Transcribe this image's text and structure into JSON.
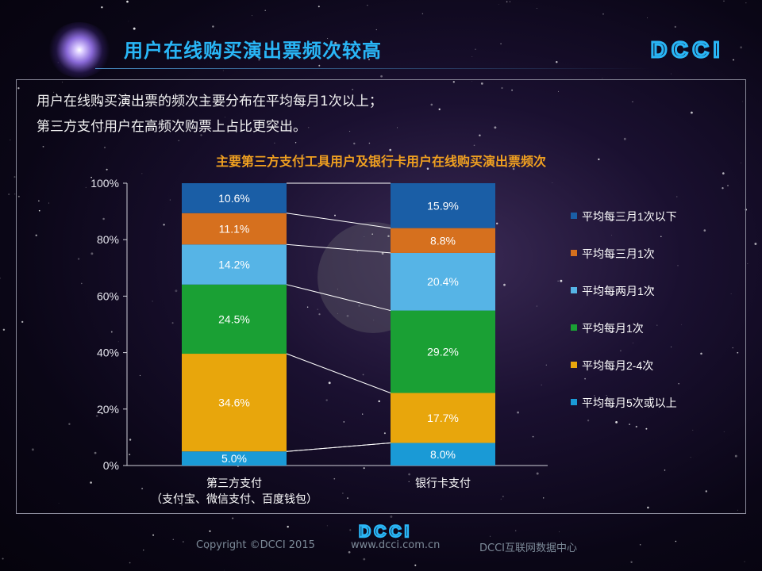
{
  "header": {
    "title": "用户在线购买演出票频次较高",
    "logo_text": "DCCI"
  },
  "intro": {
    "line1": "用户在线购买演出票的频次主要分布在平均每月1次以上；",
    "line2": "第三方支付用户在高频次购票上占比更突出。"
  },
  "chart_data": {
    "type": "bar",
    "stacked": true,
    "title": "主要第三方支付工具用户及银行卡用户在线购买演出票频次",
    "categories": [
      "第三方支付\n（支付宝、微信支付、百度钱包）",
      "银行卡支付"
    ],
    "category_lines": [
      [
        "第三方支付",
        "（支付宝、微信支付、百度钱包）"
      ],
      [
        "银行卡支付"
      ]
    ],
    "yticks": [
      "0%",
      "20%",
      "40%",
      "60%",
      "80%",
      "100%"
    ],
    "ylim": [
      0,
      100
    ],
    "legend_position": "right",
    "series": [
      {
        "name": "平均每月5次或以上",
        "color": "#1a9ad6",
        "values": [
          5.0,
          8.0
        ],
        "labels": [
          "5.0%",
          "8.0%"
        ]
      },
      {
        "name": "平均每月2-4次",
        "color": "#e8a60c",
        "values": [
          34.6,
          17.7
        ],
        "labels": [
          "34.6%",
          "17.7%"
        ]
      },
      {
        "name": "平均每月1次",
        "color": "#1aa034",
        "values": [
          24.5,
          29.2
        ],
        "labels": [
          "24.5%",
          "29.2%"
        ]
      },
      {
        "name": "平均每两月1次",
        "color": "#56b4e6",
        "values": [
          14.2,
          20.4
        ],
        "labels": [
          "14.2%",
          "20.4%"
        ]
      },
      {
        "name": "平均每三月1次",
        "color": "#d6701e",
        "values": [
          11.1,
          8.8
        ],
        "labels": [
          "11.1%",
          "8.8%"
        ]
      },
      {
        "name": "平均每三月1次以下",
        "color": "#1a5ea6",
        "values": [
          10.6,
          15.9
        ],
        "labels": [
          "10.6%",
          "15.9%"
        ]
      }
    ]
  },
  "footer": {
    "logo_text": "DCCI",
    "copyright": "Copyright ©DCCI 2015",
    "url": "www.dcci.com.cn",
    "org": "DCCI互联网数据中心"
  }
}
